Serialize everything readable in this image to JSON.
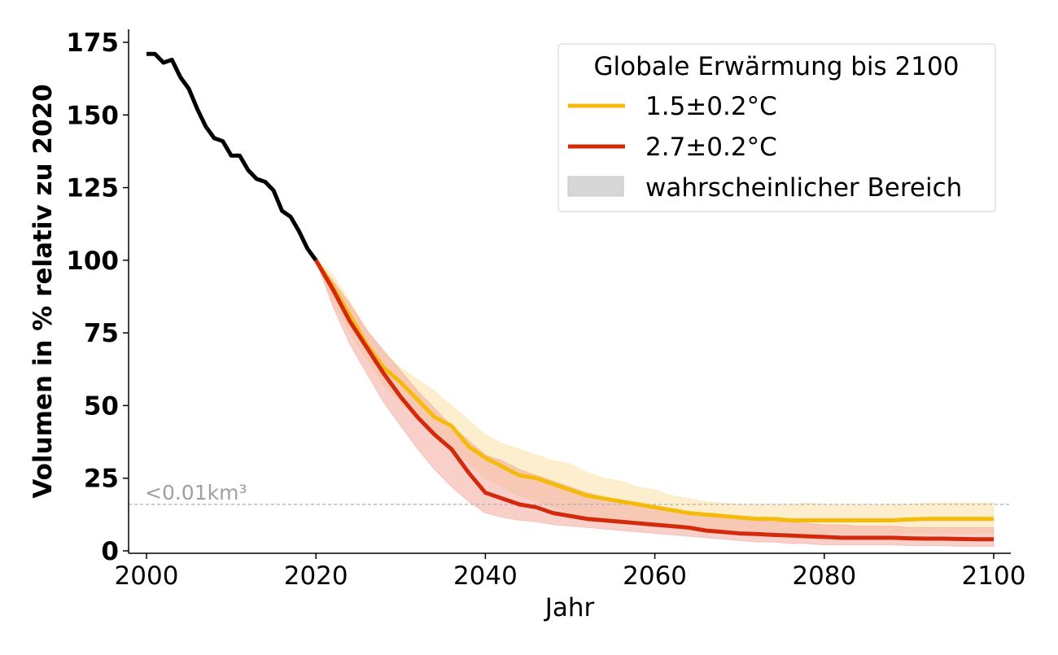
{
  "chart_data": {
    "type": "line",
    "xlabel": "Jahr",
    "ylabel": "Volumen in % relativ zu 2020",
    "xlim": [
      1998,
      2102
    ],
    "ylim": [
      0,
      180
    ],
    "x_ticks": [
      2000,
      2020,
      2040,
      2060,
      2080,
      2100
    ],
    "y_ticks": [
      0,
      25,
      50,
      75,
      100,
      125,
      150,
      175
    ],
    "grid": false,
    "legend": {
      "title": "Globale Erwärmung bis 2100",
      "placement": "top-right",
      "entries": [
        "1.5±0.2°C",
        "2.7±0.2°C",
        "wahrscheinlicher Bereich"
      ]
    },
    "annotation": {
      "text": "<0.01km³",
      "y": 16,
      "line_style": "dashed",
      "color": "#b0b0b0"
    },
    "series": [
      {
        "kind": "historical",
        "color": "#000000",
        "x": [
          2000,
          2001,
          2002,
          2003,
          2004,
          2005,
          2006,
          2007,
          2008,
          2009,
          2010,
          2011,
          2012,
          2013,
          2014,
          2015,
          2016,
          2017,
          2018,
          2019,
          2020
        ],
        "values": [
          171,
          171,
          168,
          169,
          163,
          159,
          152,
          146,
          142,
          141,
          136,
          136,
          131,
          128,
          127,
          124,
          117,
          115,
          110,
          104,
          100
        ]
      },
      {
        "name": "1.5±0.2°C",
        "color": "#f5bb0c",
        "band_color": "#fbe2a5",
        "x": [
          2020,
          2022,
          2024,
          2026,
          2028,
          2030,
          2032,
          2034,
          2036,
          2038,
          2040,
          2042,
          2044,
          2046,
          2048,
          2050,
          2052,
          2054,
          2056,
          2058,
          2060,
          2062,
          2064,
          2066,
          2068,
          2070,
          2072,
          2074,
          2076,
          2078,
          2080,
          2082,
          2084,
          2086,
          2088,
          2090,
          2092,
          2094,
          2096,
          2098,
          2100
        ],
        "values": [
          100,
          91,
          81,
          71,
          63,
          58,
          52,
          46,
          43,
          36,
          32,
          29,
          26,
          25,
          23,
          21,
          19,
          18,
          17,
          16,
          15,
          14,
          13,
          12.5,
          12,
          11.5,
          11,
          11,
          10.5,
          10.5,
          10.5,
          10.5,
          10.5,
          10.5,
          10.5,
          10.8,
          11,
          11,
          11,
          11,
          11
        ],
        "lower": [
          100,
          86,
          75,
          66,
          57,
          51,
          45,
          40,
          36,
          30,
          25,
          22,
          19,
          17,
          15,
          13,
          12,
          11,
          10.5,
          10,
          9.5,
          9,
          8.5,
          8,
          7.5,
          7,
          7,
          6.5,
          6.5,
          6,
          6,
          6,
          6,
          6,
          6,
          6,
          6,
          6,
          6,
          6,
          6
        ],
        "upper": [
          100,
          95,
          86,
          76,
          68,
          63,
          59,
          55,
          50,
          45,
          40,
          37,
          35,
          33,
          31,
          30,
          27,
          25,
          24,
          22,
          21,
          19,
          18,
          17,
          16.5,
          16,
          16,
          16,
          16,
          16.5,
          16,
          16,
          16,
          16,
          16,
          16,
          16.5,
          16.5,
          16.5,
          16.5,
          16.5
        ]
      },
      {
        "name": "2.7±0.2°C",
        "color": "#d42a0c",
        "band_color": "#f2a89c",
        "x": [
          2020,
          2022,
          2024,
          2026,
          2028,
          2030,
          2032,
          2034,
          2036,
          2038,
          2040,
          2042,
          2044,
          2046,
          2048,
          2050,
          2052,
          2054,
          2056,
          2058,
          2060,
          2062,
          2064,
          2066,
          2068,
          2070,
          2072,
          2074,
          2076,
          2078,
          2080,
          2082,
          2084,
          2086,
          2088,
          2090,
          2092,
          2094,
          2096,
          2098,
          2100
        ],
        "values": [
          100,
          90,
          79,
          70,
          61,
          53,
          46,
          40,
          35,
          27,
          20,
          18,
          16,
          15,
          13,
          12,
          11,
          10.5,
          10,
          9.5,
          9,
          8.5,
          8,
          7,
          6.5,
          6,
          5.8,
          5.5,
          5.3,
          5,
          4.8,
          4.5,
          4.5,
          4.5,
          4.5,
          4.3,
          4.2,
          4.2,
          4.1,
          4,
          4
        ],
        "lower": [
          100,
          84,
          71,
          61,
          51,
          43,
          35,
          28,
          22,
          17,
          13,
          11.5,
          10.5,
          10,
          9,
          8.5,
          8,
          7.5,
          7,
          6.5,
          6,
          5.5,
          5,
          4.5,
          4,
          3.5,
          3,
          3,
          2.5,
          2.5,
          2,
          2,
          2,
          2,
          2,
          1.8,
          1.8,
          1.8,
          1.5,
          1.5,
          1.5
        ],
        "upper": [
          100,
          93,
          85,
          76,
          69,
          62,
          55,
          49,
          43,
          38,
          33,
          31,
          28,
          26,
          24,
          22,
          20,
          18.5,
          17,
          16,
          15,
          14,
          13,
          12,
          11.5,
          11,
          10.5,
          10,
          10,
          9.5,
          9,
          9,
          8.5,
          8.5,
          8.5,
          8,
          8,
          8,
          8,
          8,
          8
        ]
      }
    ]
  }
}
